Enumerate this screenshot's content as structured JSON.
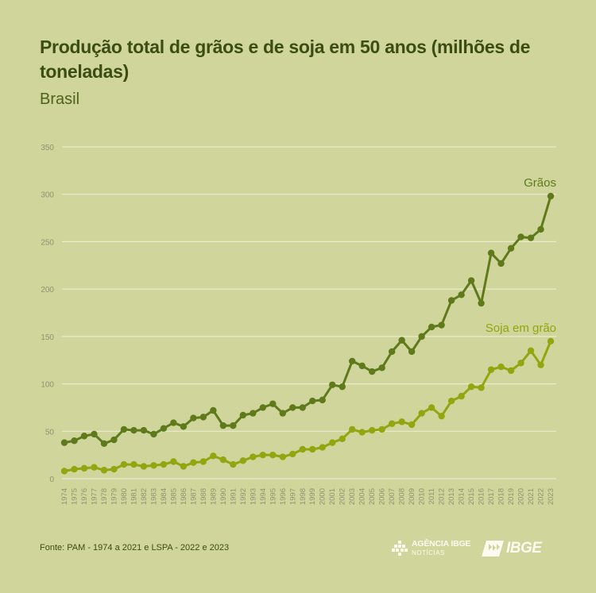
{
  "title": "Produção total de grãos e de soja em 50 anos (milhões de toneladas)",
  "subtitle": "Brasil",
  "source": "Fonte: PAM - 1974 a 2021 e LSPA  -  2022 e 2023",
  "logos": {
    "agencia_line1": "AGÊNCIA IBGE",
    "agencia_line2": "NOTÍCIAS",
    "ibge": "IBGE"
  },
  "colors": {
    "background": "#d0d59c",
    "graos": "#5f7a1a",
    "soja": "#93a50f",
    "grid": "#eef0d8",
    "axis_text": "#8f9470"
  },
  "chart_data": {
    "type": "line",
    "title": "Produção total de grãos e de soja em 50 anos (milhões de toneladas)",
    "subtitle": "Brasil",
    "xlabel": "",
    "ylabel": "",
    "ylim": [
      0,
      350
    ],
    "yticks": [
      0,
      50,
      100,
      150,
      200,
      250,
      300,
      350
    ],
    "grid": true,
    "x": [
      1974,
      1975,
      1976,
      1977,
      1978,
      1979,
      1980,
      1981,
      1982,
      1983,
      1984,
      1985,
      1986,
      1987,
      1988,
      1989,
      1990,
      1991,
      1992,
      1993,
      1994,
      1995,
      1996,
      1997,
      1998,
      1999,
      2000,
      2001,
      2002,
      2003,
      2004,
      2005,
      2006,
      2007,
      2008,
      2009,
      2010,
      2011,
      2012,
      2013,
      2014,
      2015,
      2016,
      2017,
      2018,
      2019,
      2020,
      2021,
      2022,
      2023
    ],
    "series": [
      {
        "name": "Grãos",
        "values": [
          38,
          40,
          45,
          47,
          37,
          41,
          52,
          51,
          51,
          47,
          53,
          59,
          55,
          64,
          65,
          72,
          56,
          56,
          67,
          69,
          75,
          79,
          69,
          75,
          75,
          82,
          83,
          99,
          97,
          124,
          119,
          113,
          117,
          134,
          146,
          134,
          150,
          160,
          162,
          188,
          194,
          209,
          185,
          238,
          227,
          243,
          255,
          254,
          263,
          298
        ]
      },
      {
        "name": "Soja em grão",
        "values": [
          8,
          10,
          11,
          12,
          9,
          10,
          15,
          15,
          13,
          14,
          15,
          18,
          13,
          17,
          18,
          24,
          20,
          15,
          19,
          23,
          25,
          25,
          23,
          26,
          31,
          31,
          33,
          38,
          42,
          52,
          49,
          51,
          52,
          58,
          60,
          57,
          69,
          75,
          66,
          82,
          87,
          97,
          96,
          115,
          118,
          114,
          122,
          135,
          120,
          145
        ]
      }
    ]
  }
}
